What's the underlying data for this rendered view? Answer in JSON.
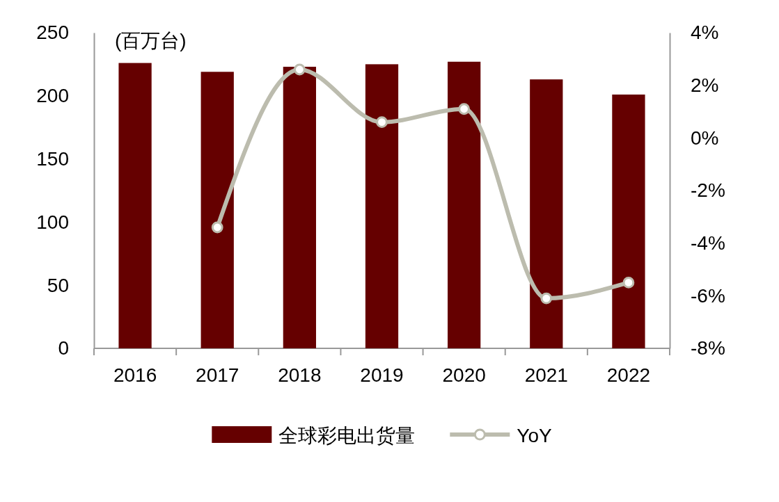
{
  "chart_data": {
    "type": "bar",
    "ylabel": "(百万台)",
    "categories": [
      "2016",
      "2017",
      "2018",
      "2019",
      "2020",
      "2021",
      "2022"
    ],
    "series": [
      {
        "name": "全球彩电出货量",
        "color": "#650000",
        "values": [
          226,
          219,
          223,
          225,
          227,
          213,
          201
        ]
      },
      {
        "name": "YoY",
        "type": "line",
        "axis": "y2",
        "color": "#bcbcae",
        "marker": "circle",
        "values": [
          null,
          -3.4,
          2.6,
          0.6,
          1.1,
          -6.1,
          -5.5
        ]
      }
    ],
    "ylim": [
      0,
      250
    ],
    "yticks": [
      0,
      50,
      100,
      150,
      200,
      250
    ],
    "y2lim": [
      -8,
      4
    ],
    "y2ticks": [
      {
        "value": 4,
        "label": "4%"
      },
      {
        "value": 2,
        "label": "2%"
      },
      {
        "value": 0,
        "label": "0%"
      },
      {
        "value": -2,
        "label": "-2%"
      },
      {
        "value": -4,
        "label": "-4%"
      },
      {
        "value": -6,
        "label": "-6%"
      },
      {
        "value": -8,
        "label": "-8%"
      }
    ],
    "grid": false,
    "legend": "bottom"
  }
}
